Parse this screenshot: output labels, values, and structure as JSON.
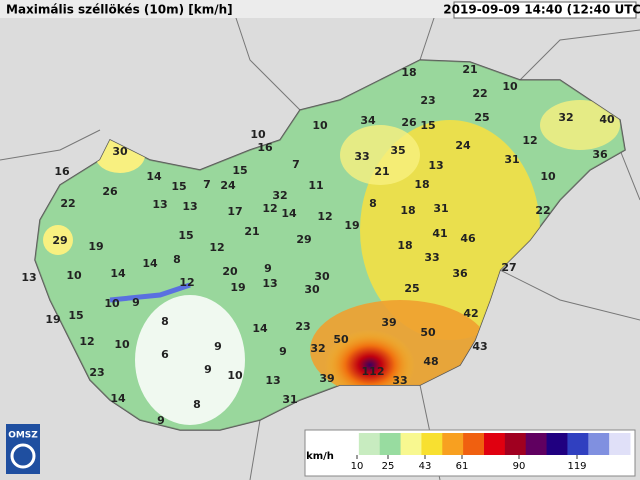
{
  "header": {
    "title": "Maximális széllökés (10m) [km/h]",
    "timestamp": "2019-09-09 14:40 (12:40 UTC)"
  },
  "logo": "OMSZ",
  "stations": [
    18,
    21,
    10,
    23,
    22,
    34,
    26,
    15,
    25,
    32,
    40,
    30,
    10,
    10,
    16,
    33,
    35,
    24,
    12,
    36,
    7,
    15,
    31,
    16,
    14,
    15,
    26,
    7,
    24,
    11,
    21,
    13,
    10,
    22,
    13,
    13,
    32,
    18,
    8,
    22,
    17,
    14,
    12,
    12,
    19,
    18,
    31,
    29,
    19,
    15,
    21,
    29,
    41,
    46,
    18,
    8,
    12,
    9,
    13,
    10,
    14,
    14,
    20,
    13,
    30,
    33,
    36,
    27,
    12,
    19,
    30,
    25,
    10,
    9,
    19,
    15,
    8,
    14,
    23,
    39,
    50,
    42,
    12,
    10,
    9,
    50,
    32,
    9,
    6,
    43,
    48,
    23,
    9,
    10,
    13,
    112,
    33,
    39,
    14,
    8,
    31,
    9
  ],
  "legend": {
    "unit": "km/h",
    "ticks": [
      10,
      25,
      43,
      61,
      90,
      119
    ]
  }
}
